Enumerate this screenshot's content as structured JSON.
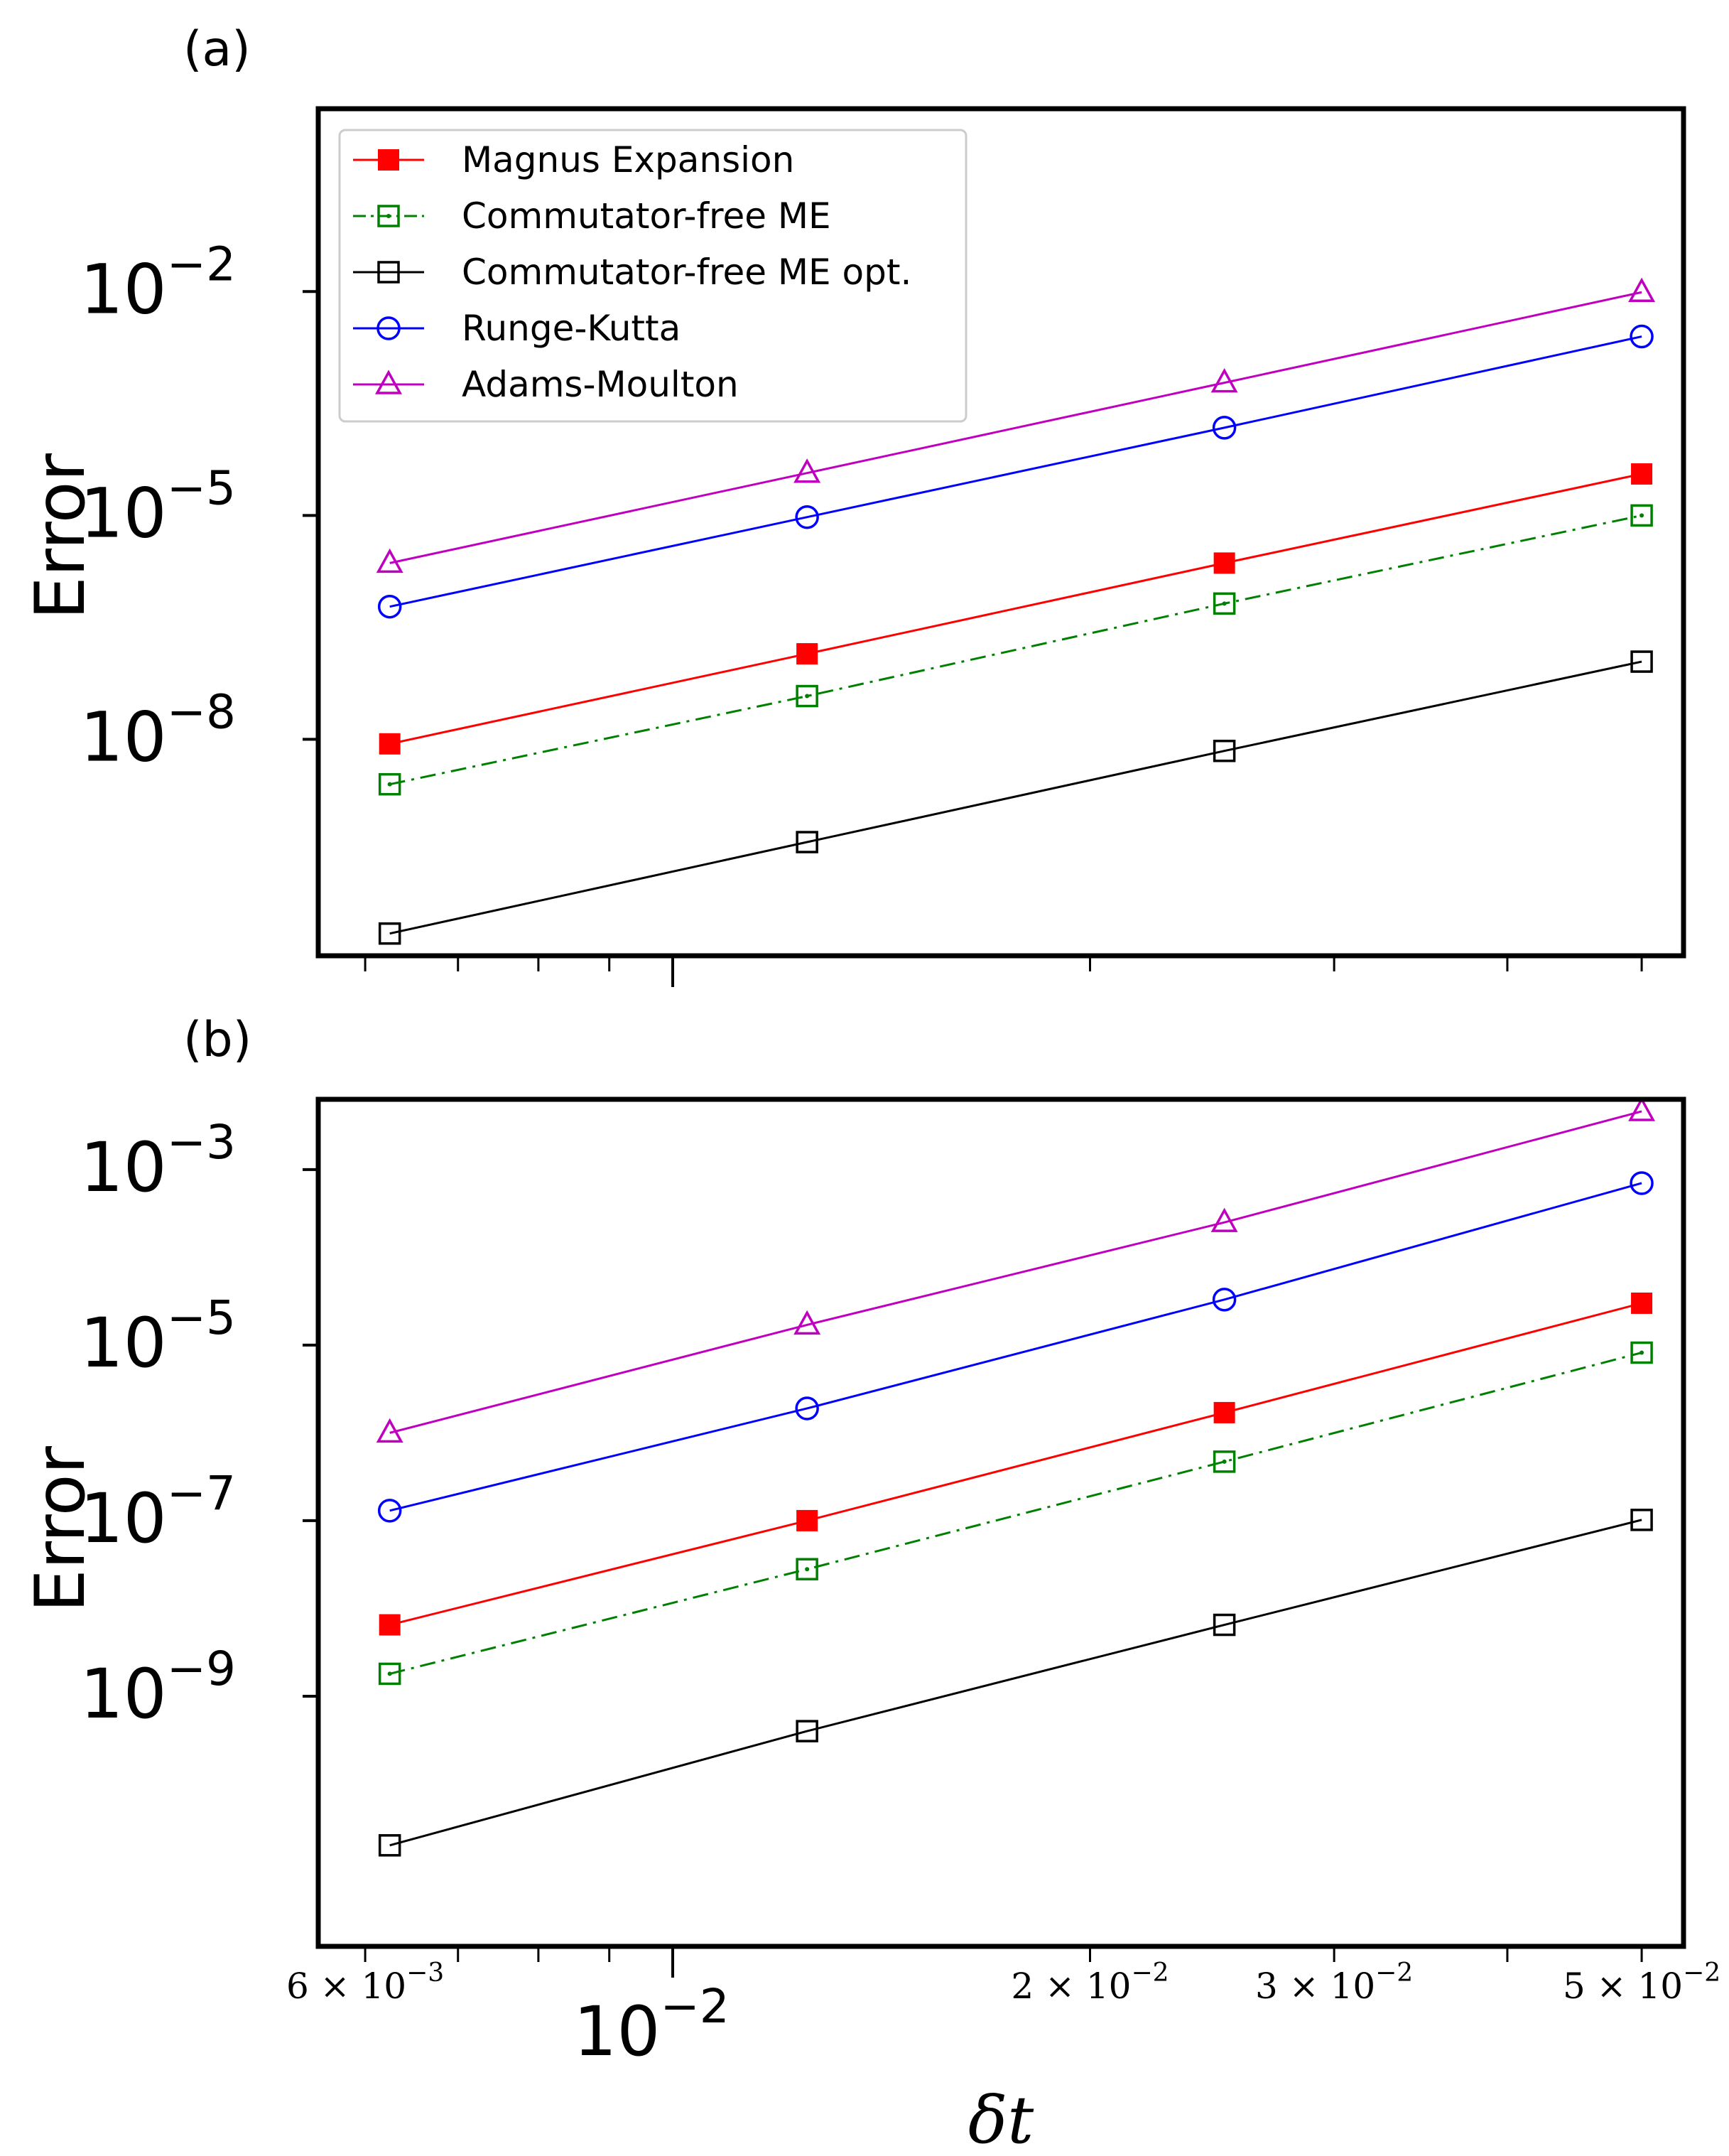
{
  "figure": {
    "xlabel": "δt",
    "major_xtick": {
      "base": "10",
      "exp": "−2",
      "value": 0.01
    },
    "minor_xticks": [
      {
        "coef": "6",
        "base": "10",
        "exp": "−3",
        "value": 0.006
      },
      {
        "coef": "2",
        "base": "10",
        "exp": "−2",
        "value": 0.02
      },
      {
        "coef": "3",
        "base": "10",
        "exp": "−2",
        "value": 0.03
      },
      {
        "coef": "5",
        "base": "10",
        "exp": "−2",
        "value": 0.05
      }
    ],
    "minor_tick_values": [
      0.006,
      0.007,
      0.008,
      0.009,
      0.02,
      0.03,
      0.04,
      0.05
    ]
  },
  "legend": {
    "entries": [
      {
        "label": "Magnus Expansion",
        "color": "#ff0000",
        "marker": "square-filled",
        "dash": "solid"
      },
      {
        "label": "Commutator-free ME",
        "color": "#008000",
        "marker": "square-dot",
        "dash": "dashdot"
      },
      {
        "label": "Commutator-free ME opt.",
        "color": "#000000",
        "marker": "square-open",
        "dash": "solid"
      },
      {
        "label": "Runge-Kutta",
        "color": "#0000ff",
        "marker": "circle-open",
        "dash": "solid"
      },
      {
        "label": "Adams-Moulton",
        "color": "#bf00bf",
        "marker": "triangle-open",
        "dash": "solid"
      }
    ]
  },
  "chart_data": [
    {
      "type": "line",
      "panel_label": "(a)",
      "title": "",
      "xlabel": "",
      "ylabel": "Error",
      "xscale": "log",
      "yscale": "log",
      "xlim": [
        0.00555,
        0.0536
      ],
      "ylim_log10": [
        -10.9,
        0.45
      ],
      "yticks": [
        {
          "base": "10",
          "exp": "−2",
          "log10": -2
        },
        {
          "base": "10",
          "exp": "−5",
          "log10": -5
        },
        {
          "base": "10",
          "exp": "−8",
          "log10": -8
        }
      ],
      "legend_position": "top-left",
      "x": [
        0.00625,
        0.0125,
        0.025,
        0.05
      ],
      "series": [
        {
          "name": "Magnus Expansion",
          "values": [
            8.7e-09,
            1.4e-07,
            2.3e-06,
            3.6e-05
          ]
        },
        {
          "name": "Commutator-free ME",
          "values": [
            2.5e-09,
            3.8e-08,
            6.6e-07,
            1e-05
          ]
        },
        {
          "name": "Commutator-free ME opt.",
          "values": [
            2.5e-11,
            4.2e-10,
            7e-09,
            1.1e-07
          ]
        },
        {
          "name": "Runge-Kutta",
          "values": [
            6e-07,
            9.5e-06,
            0.00015,
            0.0025
          ]
        },
        {
          "name": "Adams-Moulton",
          "values": [
            2.3e-06,
            3.7e-05,
            0.0006,
            0.0098
          ]
        }
      ]
    },
    {
      "type": "line",
      "panel_label": "(b)",
      "title": "",
      "xlabel": "δt",
      "ylabel": "Error",
      "xscale": "log",
      "yscale": "log",
      "xlim": [
        0.00555,
        0.0536
      ],
      "ylim_log10": [
        -11.85,
        -2.2
      ],
      "yticks": [
        {
          "base": "10",
          "exp": "−3",
          "log10": -3
        },
        {
          "base": "10",
          "exp": "−5",
          "log10": -5
        },
        {
          "base": "10",
          "exp": "−7",
          "log10": -7
        },
        {
          "base": "10",
          "exp": "−9",
          "log10": -9
        }
      ],
      "legend_position": "none",
      "x": [
        0.00625,
        0.0125,
        0.025,
        0.05
      ],
      "series": [
        {
          "name": "Magnus Expansion",
          "values": [
            6.5e-09,
            1e-07,
            1.7e-06,
            3e-05
          ]
        },
        {
          "name": "Commutator-free ME",
          "values": [
            1.8e-09,
            2.8e-08,
            4.7e-07,
            8.2e-06
          ]
        },
        {
          "name": "Commutator-free ME opt.",
          "values": [
            2e-11,
            4e-10,
            6.5e-09,
            1.02e-07
          ]
        },
        {
          "name": "Runge-Kutta",
          "values": [
            1.3e-07,
            1.9e-06,
            3.3e-05,
            0.0007
          ]
        },
        {
          "name": "Adams-Moulton",
          "values": [
            1e-06,
            1.7e-05,
            0.00025,
            0.0046
          ]
        }
      ]
    }
  ]
}
